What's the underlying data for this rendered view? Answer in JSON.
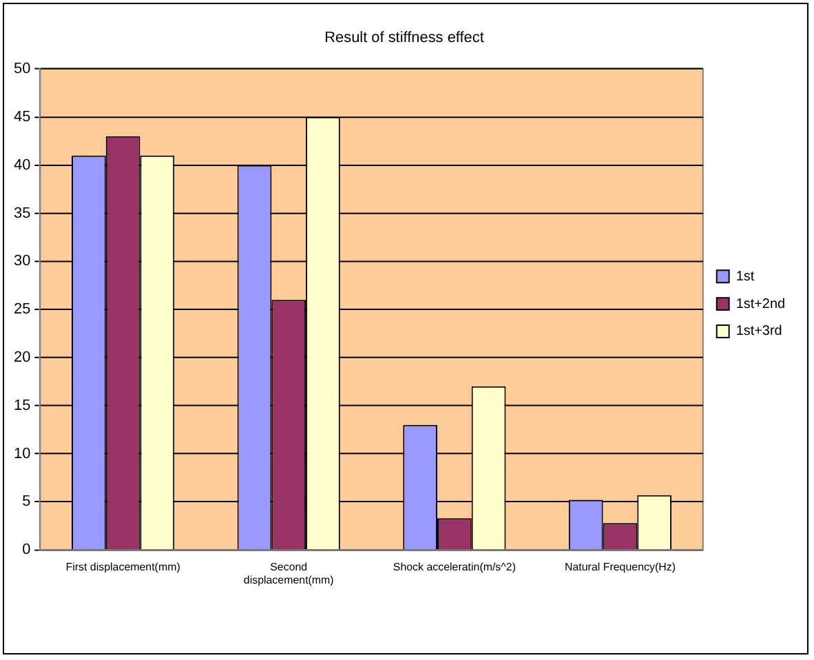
{
  "chart_data": {
    "type": "bar",
    "title": "Result of stiffness effect",
    "categories": [
      "First displacement(mm)",
      "Second\ndisplacement(mm)",
      "Shock acceleratin(m/s^2)",
      "Natural Frequency(Hz)"
    ],
    "series": [
      {
        "name": "1st",
        "color": "#9999ff",
        "values": [
          41,
          40,
          13,
          5.2
        ]
      },
      {
        "name": "1st+2nd",
        "color": "#993366",
        "values": [
          43,
          26,
          3.3,
          2.8
        ]
      },
      {
        "name": "1st+3rd",
        "color": "#ffffcc",
        "values": [
          41,
          45,
          17,
          5.7
        ]
      }
    ],
    "ylim": [
      0,
      50
    ],
    "yticks": [
      0,
      5,
      10,
      15,
      20,
      25,
      30,
      35,
      40,
      45,
      50
    ],
    "grid": "y",
    "legend": "right"
  }
}
